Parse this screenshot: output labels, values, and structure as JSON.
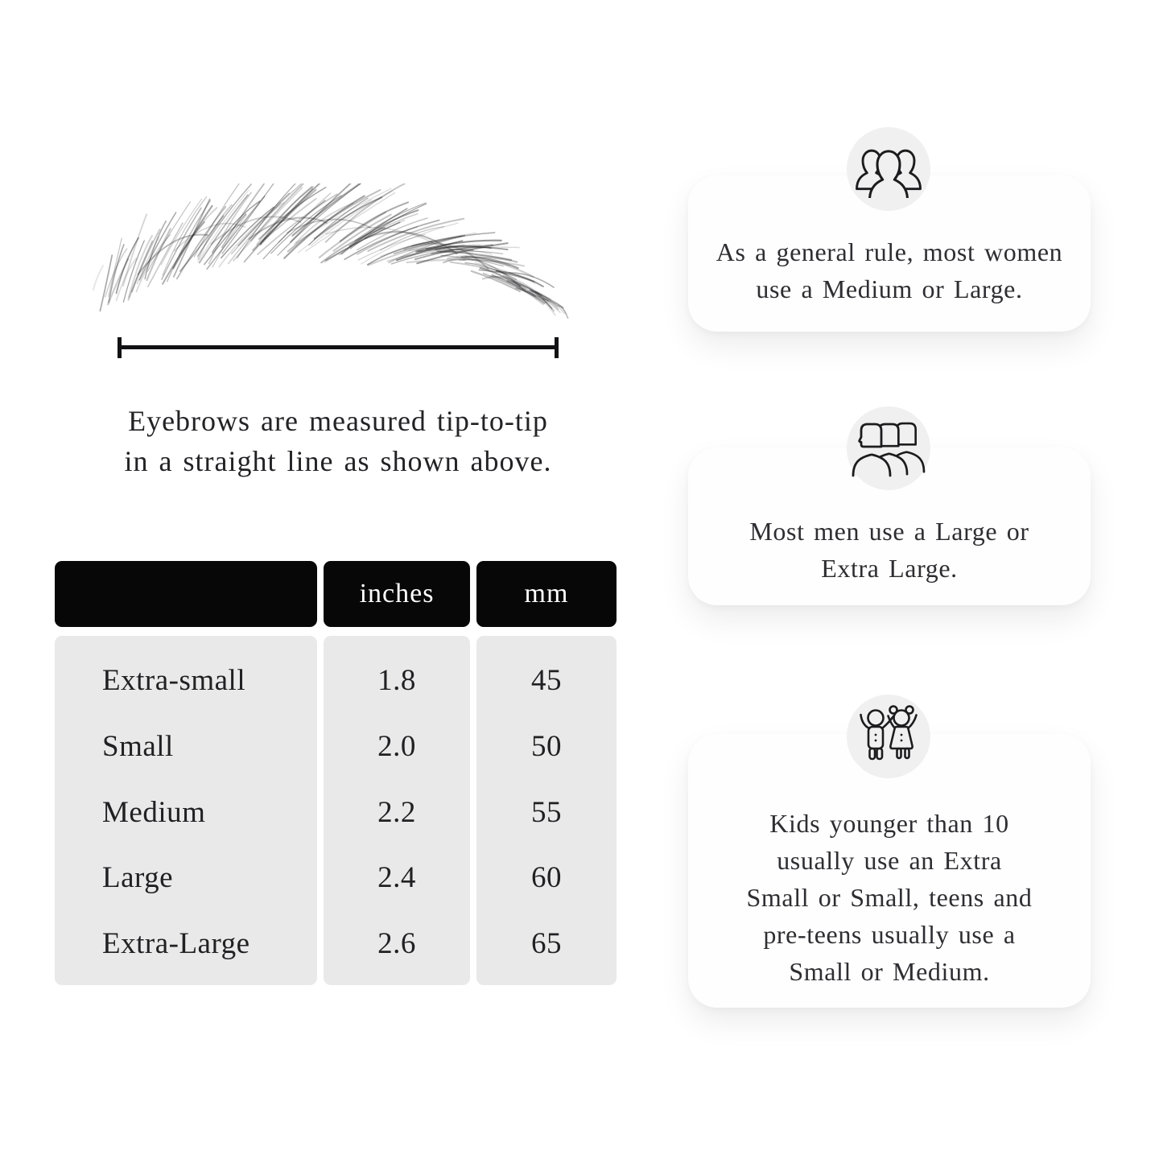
{
  "measure": {
    "caption_line1": "Eyebrows are measured tip-to-tip",
    "caption_line2": "in a straight line as shown above."
  },
  "table": {
    "headers": {
      "size": "",
      "inches": "inches",
      "mm": "mm"
    },
    "rows": [
      {
        "label": "Extra-small",
        "inches": "1.8",
        "mm": "45"
      },
      {
        "label": "Small",
        "inches": "2.0",
        "mm": "50"
      },
      {
        "label": "Medium",
        "inches": "2.2",
        "mm": "55"
      },
      {
        "label": "Large",
        "inches": "2.4",
        "mm": "60"
      },
      {
        "label": "Extra-Large",
        "inches": "2.6",
        "mm": "65"
      }
    ]
  },
  "cards": [
    {
      "icon": "women-group-icon",
      "lines": [
        "As a general rule, most women",
        "use a Medium or Large."
      ]
    },
    {
      "icon": "men-group-icon",
      "lines": [
        "Most men use a Large or",
        "Extra Large."
      ]
    },
    {
      "icon": "kids-icon",
      "lines": [
        "Kids younger than 10",
        "usually use an Extra",
        "Small or Small, teens and",
        "pre-teens usually use a",
        "Small or Medium."
      ]
    }
  ],
  "colors": {
    "background": "#ffffff",
    "table_header_bg": "#070708",
    "table_header_text": "#ffffff",
    "table_body_bg": "#e9e9e9",
    "card_bg": "#fefefe",
    "icon_circle_bg": "#f0f0f0",
    "ink": "#1c1c1e"
  }
}
